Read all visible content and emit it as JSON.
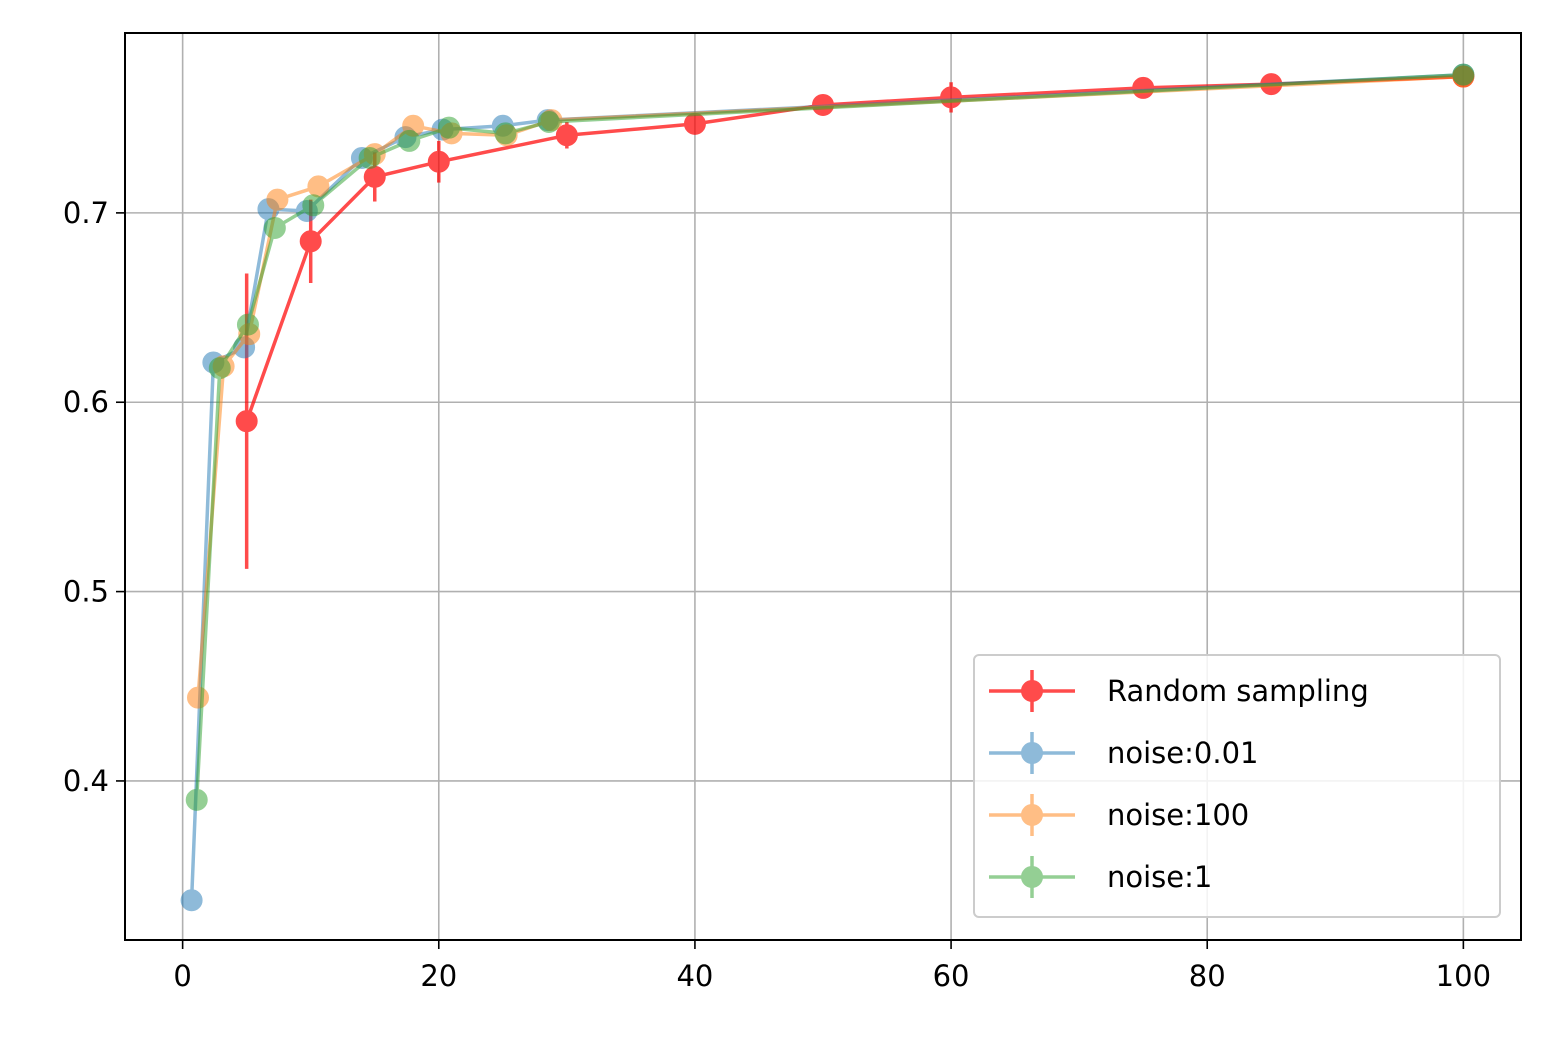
{
  "chart_data": {
    "type": "line",
    "title": "",
    "xlabel": "",
    "ylabel": "",
    "xlim": [
      -4.5,
      104.5
    ],
    "ylim": [
      0.316,
      0.795
    ],
    "xticks": [
      0,
      20,
      40,
      60,
      80,
      100
    ],
    "yticks": [
      0.4,
      0.5,
      0.6,
      0.7
    ],
    "xtick_labels": [
      "0",
      "20",
      "40",
      "60",
      "80",
      "100"
    ],
    "ytick_labels": [
      "0.4",
      "0.5",
      "0.6",
      "0.7"
    ],
    "grid": true,
    "legend_position": "bottom-right",
    "series": [
      {
        "name": "Random sampling",
        "color": "#ff0000",
        "opacity": 0.7,
        "points": [
          {
            "x": 5,
            "y": 0.59,
            "err": 0.078
          },
          {
            "x": 10,
            "y": 0.685,
            "err": 0.022
          },
          {
            "x": 15,
            "y": 0.719,
            "err": 0.013
          },
          {
            "x": 20,
            "y": 0.727,
            "err": 0.011
          },
          {
            "x": 30,
            "y": 0.741,
            "err": 0.007
          },
          {
            "x": 40,
            "y": 0.747,
            "err": 0.004
          },
          {
            "x": 50,
            "y": 0.757,
            "err": 0.005
          },
          {
            "x": 60,
            "y": 0.761,
            "err": 0.008
          },
          {
            "x": 75,
            "y": 0.766,
            "err": 0.004
          },
          {
            "x": 85,
            "y": 0.768,
            "err": 0.003
          },
          {
            "x": 100,
            "y": 0.772,
            "err": 0.002
          }
        ]
      },
      {
        "name": "noise:0.01",
        "color": "#1f77b4",
        "opacity": 0.5,
        "points": [
          {
            "x": 0.7,
            "y": 0.337,
            "err": 0.0
          },
          {
            "x": 2.4,
            "y": 0.621,
            "err": 0.0
          },
          {
            "x": 4.8,
            "y": 0.629,
            "err": 0.0
          },
          {
            "x": 6.7,
            "y": 0.702,
            "err": 0.0
          },
          {
            "x": 9.7,
            "y": 0.701,
            "err": 0.0
          },
          {
            "x": 14.0,
            "y": 0.729,
            "err": 0.0
          },
          {
            "x": 17.4,
            "y": 0.74,
            "err": 0.0
          },
          {
            "x": 20.3,
            "y": 0.744,
            "err": 0.0
          },
          {
            "x": 25.0,
            "y": 0.746,
            "err": 0.0
          },
          {
            "x": 28.5,
            "y": 0.749,
            "err": 0.0
          },
          {
            "x": 100,
            "y": 0.773,
            "err": 0.0
          }
        ]
      },
      {
        "name": "noise:100",
        "color": "#ff7f0e",
        "opacity": 0.5,
        "points": [
          {
            "x": 1.2,
            "y": 0.444,
            "err": 0.0
          },
          {
            "x": 3.2,
            "y": 0.619,
            "err": 0.0
          },
          {
            "x": 5.2,
            "y": 0.636,
            "err": 0.0
          },
          {
            "x": 7.4,
            "y": 0.707,
            "err": 0.0
          },
          {
            "x": 10.6,
            "y": 0.714,
            "err": 0.0
          },
          {
            "x": 15.0,
            "y": 0.731,
            "err": 0.0
          },
          {
            "x": 18.0,
            "y": 0.746,
            "err": 0.0
          },
          {
            "x": 21.0,
            "y": 0.742,
            "err": 0.0
          },
          {
            "x": 25.3,
            "y": 0.741,
            "err": 0.0
          },
          {
            "x": 28.8,
            "y": 0.749,
            "err": 0.0
          },
          {
            "x": 100,
            "y": 0.772,
            "err": 0.0
          }
        ]
      },
      {
        "name": "noise:1",
        "color": "#2ca02c",
        "opacity": 0.5,
        "points": [
          {
            "x": 1.1,
            "y": 0.39,
            "err": 0.0
          },
          {
            "x": 2.9,
            "y": 0.618,
            "err": 0.0
          },
          {
            "x": 5.1,
            "y": 0.641,
            "err": 0.0
          },
          {
            "x": 7.2,
            "y": 0.692,
            "err": 0.0
          },
          {
            "x": 10.2,
            "y": 0.704,
            "err": 0.0
          },
          {
            "x": 14.6,
            "y": 0.729,
            "err": 0.0
          },
          {
            "x": 17.7,
            "y": 0.738,
            "err": 0.0
          },
          {
            "x": 20.8,
            "y": 0.745,
            "err": 0.0
          },
          {
            "x": 25.2,
            "y": 0.742,
            "err": 0.0
          },
          {
            "x": 28.6,
            "y": 0.748,
            "err": 0.0
          },
          {
            "x": 100,
            "y": 0.773,
            "err": 0.0
          }
        ]
      }
    ]
  }
}
